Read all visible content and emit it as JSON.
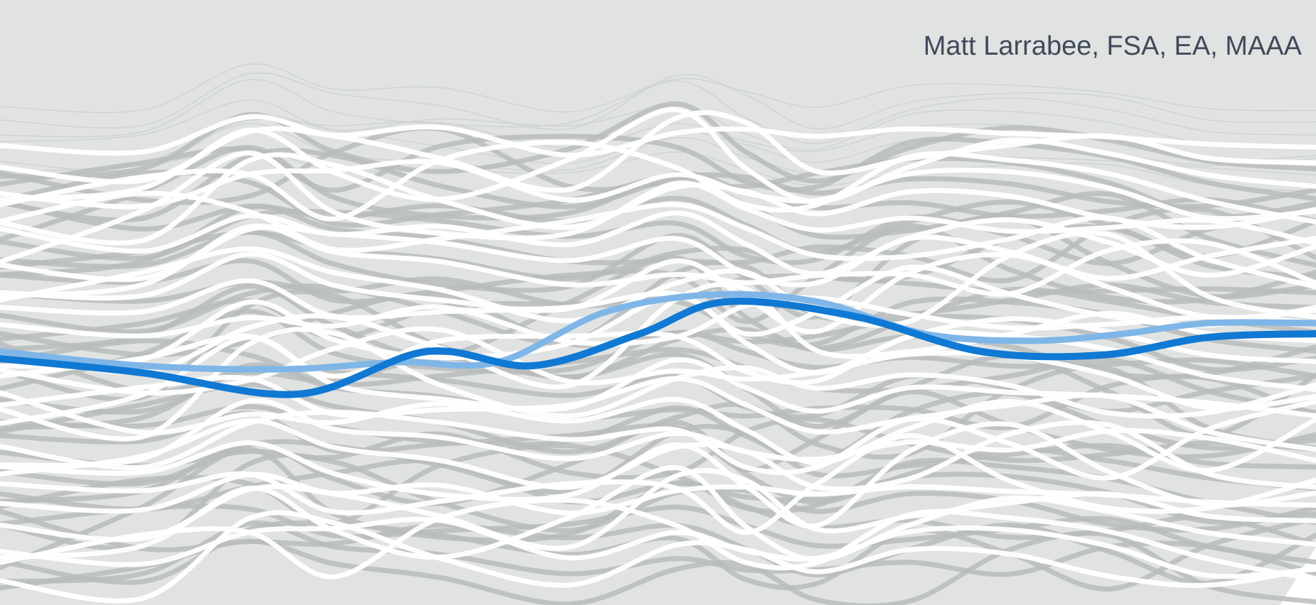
{
  "author_line": "Matt Larrabee, FSA, EA, MAAA",
  "colors": {
    "background": "#e1e3e2",
    "line_light": "#ffffff",
    "line_gray": "#b9bcbd",
    "line_faint": "#cdd0d1",
    "highlight_blue": "#1079d3",
    "highlight_blue_light": "#7fb6e8"
  }
}
